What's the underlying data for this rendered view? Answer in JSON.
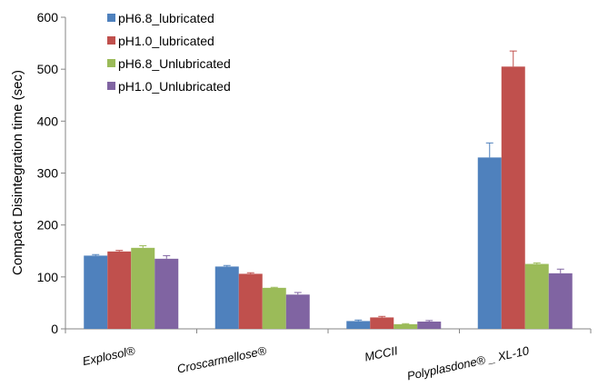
{
  "chart_data": {
    "type": "bar",
    "title": "",
    "xlabel": "",
    "ylabel": "Compact Disintegration time (sec)",
    "ylim": [
      0,
      600
    ],
    "yticks": [
      0,
      100,
      200,
      300,
      400,
      500,
      600
    ],
    "grid": false,
    "legend_position": "top-left",
    "categories": [
      "Explosol®",
      "Croscarmellose®",
      "MCCII",
      "Polyplasdone® _ XL-10"
    ],
    "series": [
      {
        "name": "pH6.8_lubricated",
        "color": "#4f81bd",
        "values": [
          141,
          120,
          15,
          330
        ],
        "errors": [
          2,
          2,
          2,
          28
        ]
      },
      {
        "name": "pH1.0_lubricated",
        "color": "#c0504d",
        "values": [
          149,
          106,
          22,
          505
        ],
        "errors": [
          2,
          2,
          2,
          30
        ]
      },
      {
        "name": "pH6.8_Unlubricated",
        "color": "#9bbb59",
        "values": [
          156,
          79,
          9,
          125
        ],
        "errors": [
          4,
          1,
          1,
          2
        ]
      },
      {
        "name": "pH1.0_Unlubricated",
        "color": "#8064a2",
        "values": [
          135,
          66,
          14,
          107
        ],
        "errors": [
          6,
          4,
          2,
          8
        ]
      }
    ]
  }
}
